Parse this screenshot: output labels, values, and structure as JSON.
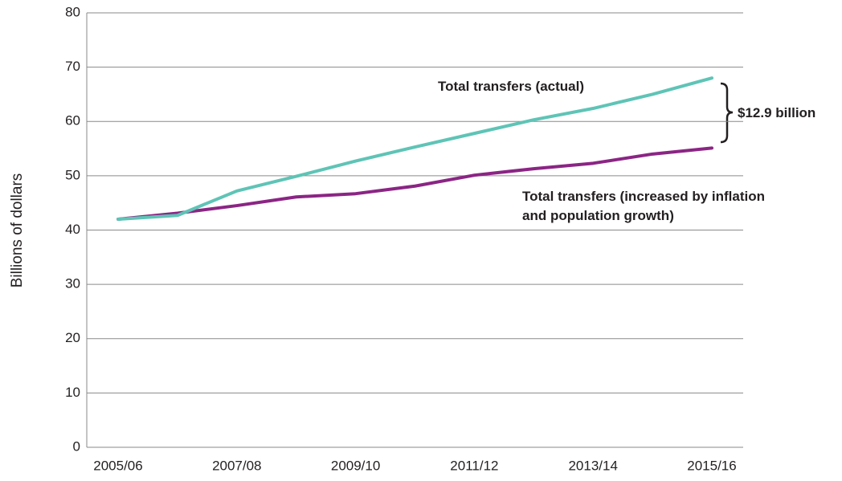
{
  "chart_data": {
    "type": "line",
    "y_label": "Billions of dollars",
    "categories": [
      "2005/06",
      null,
      "2007/08",
      null,
      "2009/10",
      null,
      "2011/12",
      null,
      "2013/14",
      null,
      "2015/16"
    ],
    "series": [
      {
        "name": "Total transfers (actual)",
        "color": "#5ec4b6",
        "values": [
          42.0,
          42.7,
          47.2,
          49.9,
          52.7,
          55.3,
          57.8,
          60.3,
          62.4,
          65.0,
          68.0
        ]
      },
      {
        "name": "Total transfers (increased by inflation and population growth)",
        "color": "#8b2584",
        "values": [
          42.0,
          43.1,
          44.5,
          46.1,
          46.7,
          48.1,
          50.1,
          51.3,
          52.3,
          54.0,
          55.1
        ]
      }
    ],
    "annotations": [
      "$12.9 billion"
    ],
    "ylim": [
      0,
      80
    ],
    "yticks": [
      0,
      10,
      20,
      30,
      40,
      50,
      60,
      70,
      80
    ],
    "grid": true
  }
}
